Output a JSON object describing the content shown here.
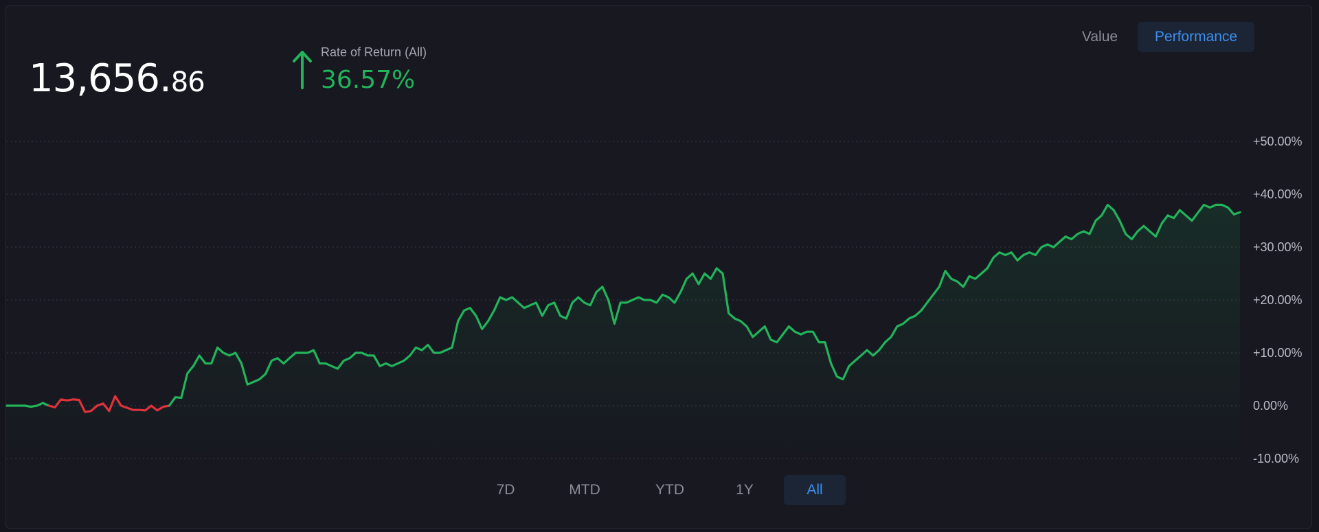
{
  "summary": {
    "value_int": "13,656.",
    "value_dec": "86",
    "ror_label": "Rate of Return (All)",
    "ror_value": "36.57%"
  },
  "view_toggle": {
    "value_label": "Value",
    "performance_label": "Performance",
    "selected": "Performance"
  },
  "ranges": [
    {
      "label": "7D",
      "active": false
    },
    {
      "label": "MTD",
      "active": false
    },
    {
      "label": "YTD",
      "active": false
    },
    {
      "label": "1Y",
      "active": false
    },
    {
      "label": "All",
      "active": true
    }
  ],
  "colors": {
    "positive": "#22b35b",
    "negative": "#e0323c",
    "accent": "#3d8ef0",
    "grid": "#3a3c48",
    "tick": "#b9bbc4"
  },
  "chart_data": {
    "type": "line",
    "title": "",
    "xlabel": "",
    "ylabel": "",
    "y_unit": "%",
    "ylim": [
      -10,
      50
    ],
    "y_ticks": [
      -10,
      0,
      10,
      20,
      30,
      40,
      50
    ],
    "y_tick_labels": [
      "-10.00%",
      "0.00%",
      "+10.00%",
      "+20.00%",
      "+30.00%",
      "+40.00%",
      "+50.00%"
    ],
    "grid": true,
    "legend": "none",
    "series": [
      {
        "values": [
          0,
          0,
          0,
          0,
          -0.2,
          0,
          0.5,
          0,
          -0.3,
          1.2,
          1,
          1.2,
          1.1,
          -1.2,
          -1,
          0,
          0.4,
          -1,
          1.8,
          0,
          -0.4,
          -0.8,
          -0.8,
          -0.9,
          0,
          -0.9,
          -0.2,
          0,
          1.6,
          1.5,
          6.1,
          7.5,
          9.5,
          8,
          8,
          11,
          10,
          9.5,
          10,
          8,
          4,
          4.5,
          5,
          6,
          8.5,
          9,
          8,
          9,
          10,
          10,
          10,
          10.5,
          8,
          8,
          7.5,
          7,
          8.5,
          9,
          10,
          10,
          9.5,
          9.5,
          7.5,
          8,
          7.5,
          8,
          8.5,
          9.5,
          11,
          10.5,
          11.5,
          10,
          10,
          10.5,
          11,
          16,
          18,
          18.5,
          17,
          14.5,
          16,
          18,
          20.5,
          20,
          20.5,
          19.5,
          18.5,
          19,
          19.5,
          17,
          19,
          19.5,
          17,
          16.5,
          19.5,
          20.5,
          19.5,
          19,
          21.5,
          22.5,
          20,
          15.5,
          19.5,
          19.5,
          20,
          20.5,
          20,
          20,
          19.5,
          21,
          20.5,
          19.5,
          21.5,
          24,
          25,
          23,
          25,
          24,
          26,
          25,
          17.5,
          16.5,
          16,
          15,
          13,
          14,
          15,
          12.5,
          12,
          13.5,
          15,
          14,
          13.5,
          14,
          14,
          12,
          12,
          8,
          5.5,
          5,
          7.5,
          8.5,
          9.5,
          10.5,
          9.5,
          10.5,
          12,
          13,
          15,
          15.5,
          16.5,
          17,
          18,
          19.5,
          21,
          22.5,
          25.5,
          24,
          23.5,
          22.5,
          24.5,
          24,
          25,
          26,
          28,
          29,
          28.5,
          29,
          27.5,
          28.5,
          29,
          28.5,
          30,
          30.5,
          30,
          31,
          32,
          31.5,
          32.5,
          33,
          32.5,
          35,
          36,
          38,
          37,
          35,
          32.5,
          31.5,
          33,
          34,
          33,
          32,
          34.5,
          36,
          35.5,
          37,
          36,
          35,
          36.5,
          38,
          37.5,
          38,
          38,
          37.5,
          36.2,
          36.6
        ],
        "negative_range": [
          7,
          27
        ]
      }
    ]
  }
}
